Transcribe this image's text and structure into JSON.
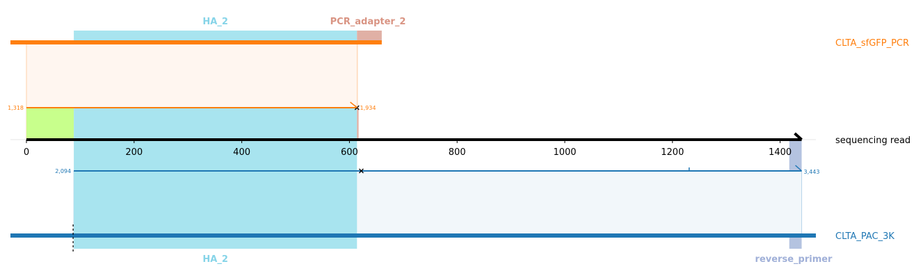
{
  "colors": {
    "orange": "#ff7f0e",
    "blue": "#1f77b4",
    "ha": "#a8e4ef",
    "ha_label": "#86d4e8",
    "pcr_adapter": "#e0b0a5",
    "pcr_adapter_label": "#d99483",
    "green": "#c8ff8c",
    "reverse_primer": "#b4c3e0",
    "reverse_primer_label": "#a0b0d8",
    "read": "#000000"
  },
  "chart_data": {
    "type": "alignment",
    "read": {
      "name": "sequencing read",
      "xlim": [
        0,
        1440
      ],
      "ticks": [
        0,
        200,
        400,
        600,
        800,
        1000,
        1200,
        1400
      ],
      "tick_labels": [
        "0",
        "200",
        "400",
        "600",
        "800",
        "1000",
        "1200",
        "1400"
      ]
    },
    "references": [
      {
        "name": "CLTA_sfGFP_PCR",
        "color": "orange",
        "alignment": {
          "query_start": 0,
          "query_end": 617,
          "ref_start_label": "1,318",
          "ref_end_label": "1,934",
          "mismatches": [
            614
          ]
        },
        "features": [
          {
            "name": "HA_2",
            "query_start": 88,
            "query_end": 614,
            "color": "ha",
            "label_color": "ha_label"
          },
          {
            "name": "PCR_adapter_2",
            "query_start": 614,
            "query_end": 660,
            "color": "pcr_adapter",
            "label_color": "pcr_adapter_label"
          }
        ]
      },
      {
        "name": "CLTA_PAC_3K",
        "color": "blue",
        "alignment": {
          "query_start": 88,
          "query_end": 1440,
          "ref_start_label": "2,094",
          "ref_end_label": "3,443",
          "mismatches": [
            622
          ],
          "insertions": [
            1231
          ]
        },
        "features": [
          {
            "name": "HA_2",
            "query_start": 88,
            "query_end": 614,
            "color": "ha",
            "label_color": "ha_label"
          },
          {
            "name": "reverse_primer",
            "query_start": 1417,
            "query_end": 1440,
            "color": "reverse_primer",
            "label_color": "reverse_primer_label"
          }
        ]
      }
    ],
    "read_features": [
      {
        "query_start": 0,
        "query_end": 88,
        "color": "green"
      },
      {
        "query_start": 88,
        "query_end": 614,
        "color": "ha"
      },
      {
        "query_start": 614,
        "query_end": 617,
        "color": "pcr_adapter"
      }
    ]
  }
}
